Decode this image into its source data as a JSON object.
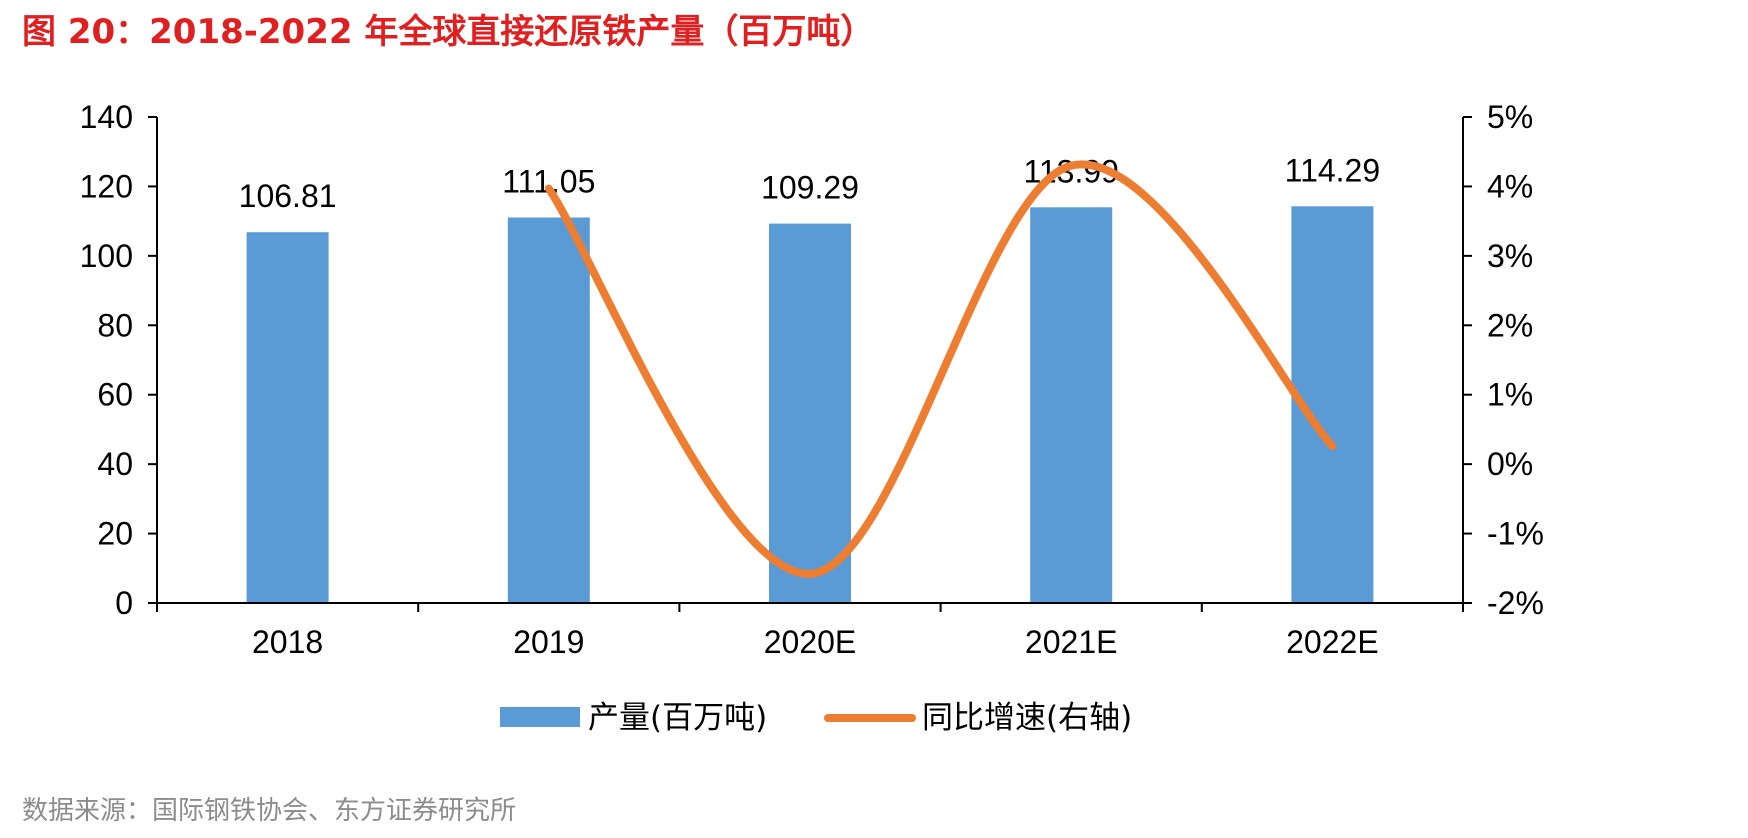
{
  "title": "图 20：2018-2022 年全球直接还原铁产量（百万吨）",
  "source": "数据来源：国际钢铁协会、东方证券研究所",
  "colors": {
    "bar": "#5b9bd5",
    "line": "#ed7d31",
    "title": "#e02020"
  },
  "chart_data": {
    "type": "bar",
    "title": "图 20：2018-2022 年全球直接还原铁产量（百万吨）",
    "categories": [
      "2018",
      "2019",
      "2020E",
      "2021E",
      "2022E"
    ],
    "y_ticks": [
      "0",
      "20",
      "40",
      "60",
      "80",
      "100",
      "120",
      "140"
    ],
    "y2_ticks": [
      "-2%",
      "-1%",
      "0%",
      "1%",
      "2%",
      "3%",
      "4%",
      "5%"
    ],
    "ylim": [
      0,
      140
    ],
    "y2lim": [
      -2,
      5
    ],
    "series": [
      {
        "name": "产量(百万吨)",
        "type": "bar",
        "axis": "left",
        "values": [
          106.81,
          111.05,
          109.29,
          113.99,
          114.29
        ],
        "labels": [
          "106.81",
          "111.05",
          "109.29",
          "113.99",
          "114.29"
        ]
      },
      {
        "name": "同比增速(右轴)",
        "type": "line",
        "axis": "right",
        "smooth": true,
        "values": [
          null,
          3.97,
          -1.58,
          4.3,
          0.26
        ]
      }
    ],
    "legend": "bottom",
    "grid": false
  }
}
